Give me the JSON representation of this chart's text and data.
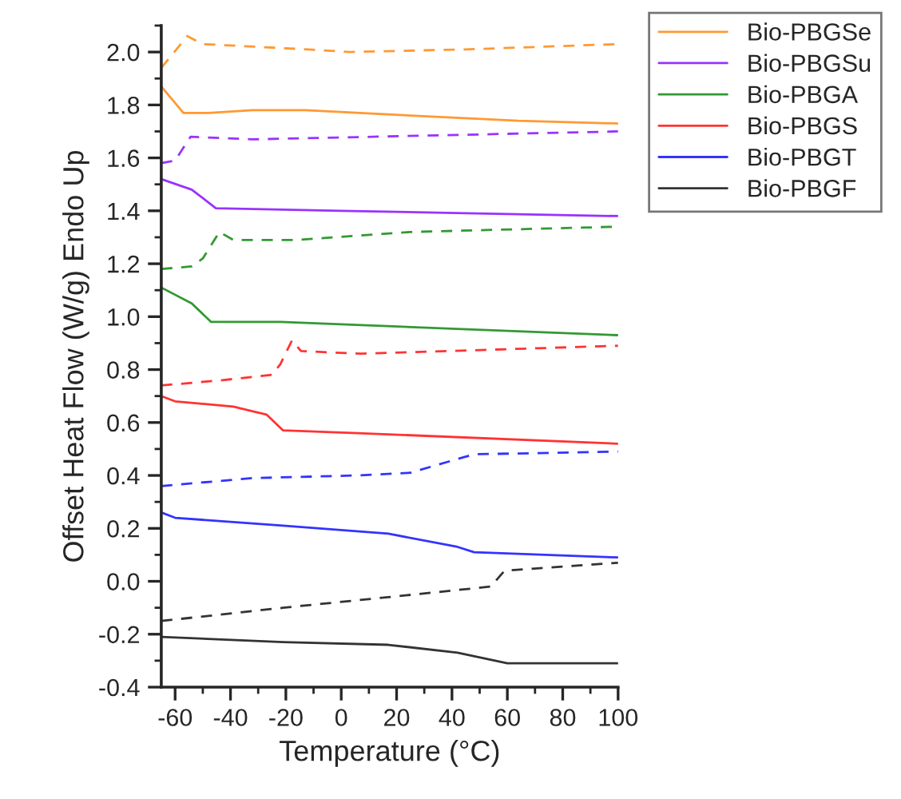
{
  "chart_data": {
    "type": "line",
    "xlabel": "Temperature (°C)",
    "ylabel": "Offset Heat Flow (W/g) Endo Up",
    "xlim": [
      -65,
      100
    ],
    "xticks": [
      -60,
      -40,
      -20,
      0,
      20,
      40,
      60,
      80,
      100
    ],
    "ylim": [
      -0.4,
      2.1
    ],
    "yticks": [
      -0.4,
      -0.2,
      {
        "value": 0,
        "label": "0.0"
      },
      0.2,
      0.4,
      0.6,
      0.8,
      {
        "value": 1,
        "label": "1.0"
      },
      1.2,
      1.4,
      1.6,
      1.8,
      {
        "value": 2,
        "label": "2.0"
      }
    ],
    "grid": false,
    "legend": "top right",
    "marker": "none",
    "series": [
      {
        "color": "#ff9933",
        "line_style": "dashed",
        "x": [
          -65,
          -55.6,
          -50,
          -12,
          3,
          45,
          100
        ],
        "values": [
          1.94,
          2.06,
          2.03,
          2.01,
          2.0,
          2.01,
          2.03
        ]
      },
      {
        "name": "Bio-PBGSe",
        "color": "#ff9933",
        "line_style": "solid",
        "x": [
          -65,
          -57,
          -48,
          -32,
          -13,
          25,
          64,
          100
        ],
        "values": [
          1.87,
          1.77,
          1.77,
          1.78,
          1.78,
          1.76,
          1.74,
          1.73
        ]
      },
      {
        "color": "#9933ff",
        "line_style": "dashed",
        "x": [
          -65,
          -60,
          -54.4,
          -32,
          100
        ],
        "values": [
          1.58,
          1.59,
          1.68,
          1.67,
          1.7
        ]
      },
      {
        "name": "Bio-PBGSu",
        "color": "#9933ff",
        "line_style": "solid",
        "x": [
          -65,
          -54,
          -45.3,
          0,
          100
        ],
        "values": [
          1.52,
          1.48,
          1.41,
          1.4,
          1.38
        ]
      },
      {
        "color": "#339933",
        "line_style": "dashed",
        "x": [
          -65,
          -54,
          -50,
          -44,
          -39,
          -16,
          25,
          100
        ],
        "values": [
          1.18,
          1.19,
          1.22,
          1.32,
          1.29,
          1.29,
          1.32,
          1.34
        ]
      },
      {
        "name": "Bio-PBGA",
        "color": "#339933",
        "line_style": "solid",
        "x": [
          -65,
          -54,
          -47,
          -22,
          100
        ],
        "values": [
          1.11,
          1.05,
          0.98,
          0.98,
          0.93
        ]
      },
      {
        "color": "#ff3333",
        "line_style": "dashed",
        "x": [
          -65,
          -43,
          -25,
          -22,
          -17.8,
          -14.5,
          7,
          100
        ],
        "values": [
          0.74,
          0.76,
          0.78,
          0.82,
          0.91,
          0.87,
          0.86,
          0.89
        ]
      },
      {
        "name": "Bio-PBGS",
        "color": "#ff3333",
        "line_style": "solid",
        "x": [
          -65,
          -60,
          -39,
          -27,
          -21,
          6,
          100
        ],
        "values": [
          0.7,
          0.68,
          0.66,
          0.63,
          0.57,
          0.56,
          0.52
        ]
      },
      {
        "color": "#3333ff",
        "line_style": "dashed",
        "x": [
          -65,
          -32,
          6,
          25,
          38,
          48,
          100
        ],
        "values": [
          0.36,
          0.39,
          0.4,
          0.41,
          0.45,
          0.48,
          0.49
        ]
      },
      {
        "name": "Bio-PBGT",
        "color": "#3333ff",
        "line_style": "solid",
        "x": [
          -65,
          -60,
          -21,
          17,
          42,
          48,
          100
        ],
        "values": [
          0.26,
          0.24,
          0.21,
          0.18,
          0.13,
          0.11,
          0.09
        ]
      },
      {
        "color": "#333333",
        "line_style": "dashed",
        "x": [
          -65,
          -21,
          17,
          54,
          59,
          100
        ],
        "values": [
          -0.15,
          -0.1,
          -0.06,
          -0.02,
          0.04,
          0.07
        ]
      },
      {
        "name": "Bio-PBGF",
        "color": "#333333",
        "line_style": "solid",
        "x": [
          -65,
          -21,
          17,
          42,
          60,
          100
        ],
        "values": [
          -0.21,
          -0.23,
          -0.24,
          -0.27,
          -0.31,
          -0.31
        ]
      }
    ]
  }
}
